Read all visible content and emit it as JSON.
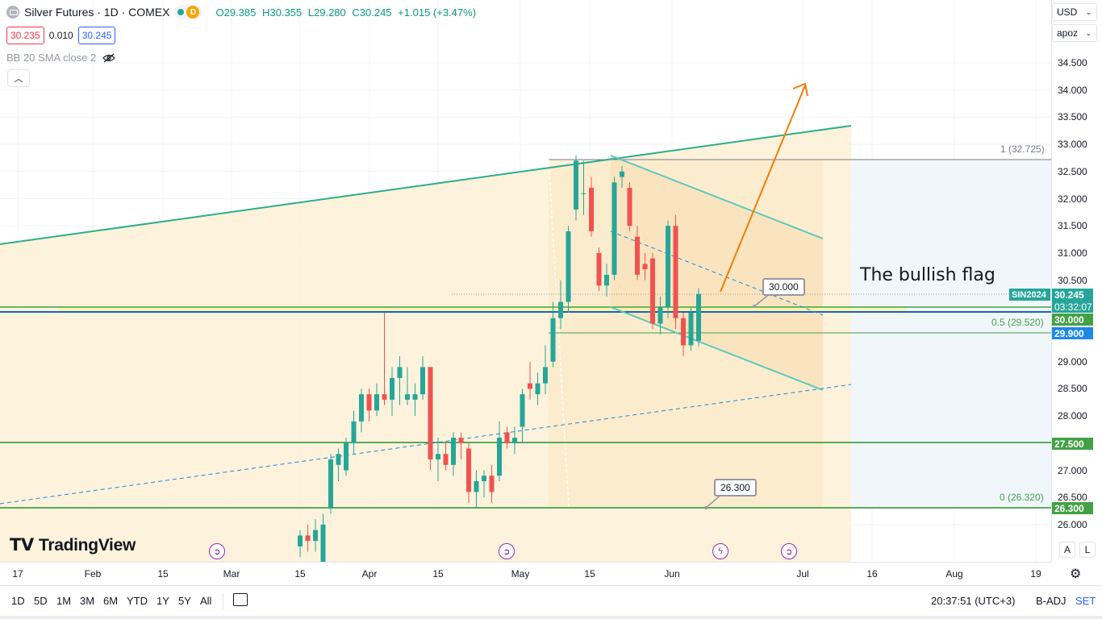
{
  "header": {
    "symbol_title": "Silver Futures · 1D · COMEX",
    "market_badge": "D",
    "ohlc": {
      "open": "O29.385",
      "high": "H30.355",
      "low": "L29.280",
      "close": "C30.245",
      "change": "+1.015 (+3.47%)"
    },
    "bid": "30.235",
    "spread": "0.010",
    "ask": "30.245",
    "indicator": "BB 20 SMA close 2"
  },
  "price_axis": {
    "currency": "USD",
    "unit": "apoz",
    "ticks": [
      "34.500",
      "34.000",
      "33.500",
      "33.000",
      "32.500",
      "32.000",
      "31.500",
      "31.000",
      "30.500",
      "30.000",
      "29.500",
      "29.000",
      "28.500",
      "28.000",
      "27.500",
      "27.000",
      "26.500",
      "26.000"
    ],
    "tags": {
      "symbol": "SIN2024",
      "last_price": "30.245",
      "countdown": "03:32:07",
      "level_30": "30.000",
      "level_29_9": "29.900",
      "level_27_5": "27.500",
      "level_26_3": "26.300"
    },
    "log_button": "A",
    "lin_button": "L"
  },
  "time_axis": {
    "ticks": [
      "17",
      "Feb",
      "15",
      "Mar",
      "15",
      "Apr",
      "15",
      "May",
      "15",
      "Jun",
      "Jul",
      "16",
      "Aug",
      "19"
    ]
  },
  "annotations": {
    "title": "The bullish flag",
    "callout_30": "30.000",
    "callout_26_3": "26.300",
    "fib_top": "1 (32.725)",
    "fib_mid": "0.5 (29.520)",
    "fib_bottom": "0 (26.320)"
  },
  "logo": "TradingView",
  "bottom_bar": {
    "ranges": [
      "1D",
      "5D",
      "1M",
      "3M",
      "6M",
      "YTD",
      "1Y",
      "5Y",
      "All"
    ],
    "clock": "20:37:51 (UTC+3)",
    "adj": "B-ADJ",
    "session": "SET"
  },
  "colors": {
    "up": "#26a69a",
    "down": "#ef5350",
    "fill": "#fdf0d5",
    "trend": "#2cae8a",
    "flag": "#5cc9bd",
    "arrow": "#f57c00",
    "blue_line": "#1565c0",
    "green_line": "#43a047"
  },
  "chart_data": {
    "type": "candlestick",
    "title": "Silver Futures · 1D · COMEX",
    "ylim": [
      25.3,
      35.2
    ],
    "x_ticks": [
      "Feb",
      "15",
      "Mar",
      "15",
      "Apr",
      "15",
      "May",
      "15",
      "Jun",
      "Jul",
      "16",
      "Aug",
      "19"
    ],
    "candles": [
      {
        "o": 25.6,
        "h": 25.9,
        "l": 25.4,
        "c": 25.8
      },
      {
        "o": 25.8,
        "h": 26.0,
        "l": 25.5,
        "c": 25.7
      },
      {
        "o": 25.7,
        "h": 26.1,
        "l": 25.5,
        "c": 25.9
      },
      {
        "o": 25.3,
        "h": 26.2,
        "l": 25.3,
        "c": 26.0
      },
      {
        "o": 26.3,
        "h": 27.3,
        "l": 26.2,
        "c": 27.2
      },
      {
        "o": 27.1,
        "h": 27.4,
        "l": 26.8,
        "c": 27.3
      },
      {
        "o": 27.0,
        "h": 27.6,
        "l": 26.9,
        "c": 27.5
      },
      {
        "o": 27.5,
        "h": 28.1,
        "l": 27.3,
        "c": 27.9
      },
      {
        "o": 27.9,
        "h": 28.5,
        "l": 27.7,
        "c": 28.4
      },
      {
        "o": 28.4,
        "h": 28.5,
        "l": 27.9,
        "c": 28.1
      },
      {
        "o": 28.1,
        "h": 28.6,
        "l": 28.0,
        "c": 28.4
      },
      {
        "o": 28.4,
        "h": 29.9,
        "l": 28.2,
        "c": 28.3
      },
      {
        "o": 28.3,
        "h": 28.9,
        "l": 28.0,
        "c": 28.7
      },
      {
        "o": 28.7,
        "h": 29.1,
        "l": 28.2,
        "c": 28.9
      },
      {
        "o": 28.3,
        "h": 28.9,
        "l": 28.2,
        "c": 28.4
      },
      {
        "o": 28.3,
        "h": 28.6,
        "l": 28.0,
        "c": 28.4
      },
      {
        "o": 28.4,
        "h": 29.1,
        "l": 28.3,
        "c": 28.9
      },
      {
        "o": 28.9,
        "h": 28.9,
        "l": 27.0,
        "c": 27.2
      },
      {
        "o": 27.2,
        "h": 27.6,
        "l": 26.8,
        "c": 27.3
      },
      {
        "o": 27.3,
        "h": 27.5,
        "l": 27.0,
        "c": 27.1
      },
      {
        "o": 27.1,
        "h": 27.7,
        "l": 26.9,
        "c": 27.6
      },
      {
        "o": 27.6,
        "h": 27.7,
        "l": 27.2,
        "c": 27.5
      },
      {
        "o": 27.4,
        "h": 27.5,
        "l": 26.4,
        "c": 26.6
      },
      {
        "o": 26.6,
        "h": 27.0,
        "l": 26.3,
        "c": 26.8
      },
      {
        "o": 26.8,
        "h": 27.0,
        "l": 26.5,
        "c": 26.9
      },
      {
        "o": 26.9,
        "h": 27.1,
        "l": 26.4,
        "c": 26.6
      },
      {
        "o": 26.9,
        "h": 27.9,
        "l": 26.8,
        "c": 27.6
      },
      {
        "o": 27.7,
        "h": 27.8,
        "l": 27.4,
        "c": 27.5
      },
      {
        "o": 27.5,
        "h": 27.8,
        "l": 27.3,
        "c": 27.6
      },
      {
        "o": 27.8,
        "h": 28.5,
        "l": 27.5,
        "c": 28.4
      },
      {
        "o": 28.6,
        "h": 29.0,
        "l": 28.3,
        "c": 28.5
      },
      {
        "o": 28.4,
        "h": 28.8,
        "l": 28.2,
        "c": 28.6
      },
      {
        "o": 28.6,
        "h": 29.3,
        "l": 28.4,
        "c": 28.9
      },
      {
        "o": 29.0,
        "h": 30.1,
        "l": 28.9,
        "c": 29.8
      },
      {
        "o": 29.8,
        "h": 30.5,
        "l": 29.6,
        "c": 30.1
      },
      {
        "o": 30.1,
        "h": 31.5,
        "l": 29.9,
        "c": 31.4
      },
      {
        "o": 31.8,
        "h": 32.8,
        "l": 31.6,
        "c": 32.7
      },
      {
        "o": 32.1,
        "h": 32.7,
        "l": 31.7,
        "c": 32.1
      },
      {
        "o": 32.2,
        "h": 32.4,
        "l": 31.3,
        "c": 31.4
      },
      {
        "o": 31.0,
        "h": 31.1,
        "l": 30.3,
        "c": 30.4
      },
      {
        "o": 30.4,
        "h": 30.8,
        "l": 30.2,
        "c": 30.6
      },
      {
        "o": 30.6,
        "h": 32.4,
        "l": 30.5,
        "c": 32.3
      },
      {
        "o": 32.4,
        "h": 32.6,
        "l": 32.2,
        "c": 32.5
      },
      {
        "o": 32.2,
        "h": 32.3,
        "l": 31.4,
        "c": 31.5
      },
      {
        "o": 31.3,
        "h": 31.5,
        "l": 30.5,
        "c": 30.6
      },
      {
        "o": 30.8,
        "h": 31.0,
        "l": 30.5,
        "c": 30.7
      },
      {
        "o": 30.9,
        "h": 31.0,
        "l": 29.6,
        "c": 29.7
      },
      {
        "o": 29.7,
        "h": 30.2,
        "l": 29.5,
        "c": 30.0
      },
      {
        "o": 30.0,
        "h": 31.6,
        "l": 29.8,
        "c": 31.5
      },
      {
        "o": 31.5,
        "h": 31.7,
        "l": 29.6,
        "c": 29.8
      },
      {
        "o": 29.8,
        "h": 29.9,
        "l": 29.1,
        "c": 29.3
      },
      {
        "o": 29.3,
        "h": 30.0,
        "l": 29.2,
        "c": 29.9
      },
      {
        "o": 29.385,
        "h": 30.355,
        "l": 29.28,
        "c": 30.245
      }
    ]
  }
}
